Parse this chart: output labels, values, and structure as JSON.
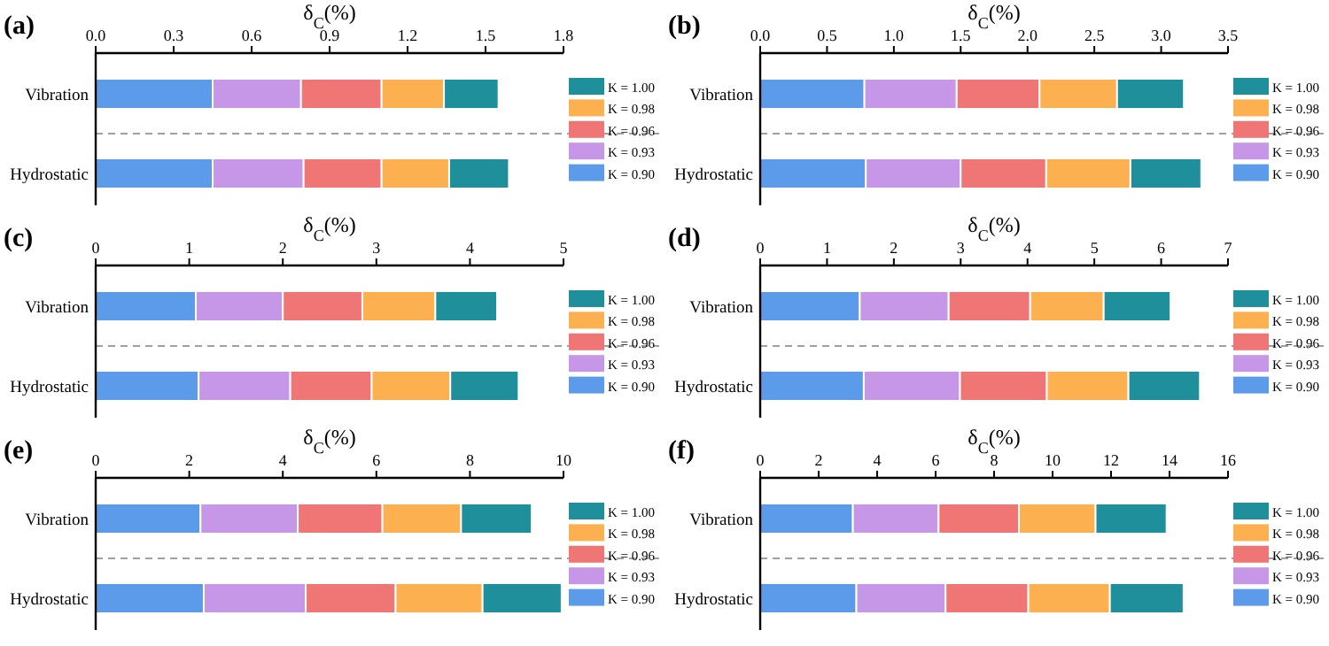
{
  "chart_data": [
    {
      "type": "bar",
      "orientation": "horizontal",
      "stacked": true,
      "title": "(a)",
      "xlabel": "δ$_{C}$(%)",
      "categories": [
        "Vibration",
        "Hydrostatic"
      ],
      "xlim": [
        0,
        1.8
      ],
      "xticks": [
        {
          "value": 0,
          "label": "0.0"
        },
        0.3,
        0.6,
        0.9,
        1.2,
        1.5,
        1.8
      ],
      "legend": "right",
      "series": [
        {
          "name": "K = 0.90",
          "color": "#5b9bea",
          "values": [
            0.45,
            0.45
          ]
        },
        {
          "name": "K = 0.93",
          "color": "#c597e6",
          "values": [
            0.34,
            0.35
          ]
        },
        {
          "name": "K = 0.96",
          "color": "#f07575",
          "values": [
            0.31,
            0.3
          ]
        },
        {
          "name": "K = 0.98",
          "color": "#fdb04f",
          "values": [
            0.24,
            0.26
          ]
        },
        {
          "name": "K = 1.00",
          "color": "#1f8f9c",
          "values": [
            0.21,
            0.23
          ]
        }
      ]
    },
    {
      "type": "bar",
      "orientation": "horizontal",
      "stacked": true,
      "title": "(b)",
      "xlabel": "δ$_{C}$(%)",
      "categories": [
        "Vibration",
        "Hydrostatic"
      ],
      "xlim": [
        0,
        3.5
      ],
      "xticks": [
        {
          "value": 0,
          "label": "0.0"
        },
        0.5,
        {
          "value": 1,
          "label": "1.0"
        },
        1.5,
        {
          "value": 2,
          "label": "2.0"
        },
        2.5,
        {
          "value": 3,
          "label": "3.0"
        },
        3.5
      ],
      "legend": "right",
      "series": [
        {
          "name": "K = 0.90",
          "color": "#5b9bea",
          "values": [
            0.78,
            0.79
          ]
        },
        {
          "name": "K = 0.93",
          "color": "#c597e6",
          "values": [
            0.69,
            0.71
          ]
        },
        {
          "name": "K = 0.96",
          "color": "#f07575",
          "values": [
            0.62,
            0.64
          ]
        },
        {
          "name": "K = 0.98",
          "color": "#fdb04f",
          "values": [
            0.58,
            0.63
          ]
        },
        {
          "name": "K = 1.00",
          "color": "#1f8f9c",
          "values": [
            0.5,
            0.53
          ]
        }
      ]
    },
    {
      "type": "bar",
      "orientation": "horizontal",
      "stacked": true,
      "title": "(c)",
      "xlabel": "δ$_{C}$(%)",
      "categories": [
        "Vibration",
        "Hydrostatic"
      ],
      "xlim": [
        0,
        5
      ],
      "xticks": [
        0,
        1,
        2,
        3,
        4,
        5
      ],
      "legend": "right",
      "series": [
        {
          "name": "K = 0.90",
          "color": "#5b9bea",
          "values": [
            1.07,
            1.1
          ]
        },
        {
          "name": "K = 0.93",
          "color": "#c597e6",
          "values": [
            0.93,
            0.98
          ]
        },
        {
          "name": "K = 0.96",
          "color": "#f07575",
          "values": [
            0.85,
            0.87
          ]
        },
        {
          "name": "K = 0.98",
          "color": "#fdb04f",
          "values": [
            0.78,
            0.84
          ]
        },
        {
          "name": "K = 1.00",
          "color": "#1f8f9c",
          "values": [
            0.66,
            0.73
          ]
        }
      ]
    },
    {
      "type": "bar",
      "orientation": "horizontal",
      "stacked": true,
      "title": "(d)",
      "xlabel": "δ$_{C}$(%)",
      "categories": [
        "Vibration",
        "Hydrostatic"
      ],
      "xlim": [
        0,
        7
      ],
      "xticks": [
        0,
        1,
        2,
        3,
        4,
        5,
        6,
        7
      ],
      "legend": "right",
      "series": [
        {
          "name": "K = 0.90",
          "color": "#5b9bea",
          "values": [
            1.49,
            1.55
          ]
        },
        {
          "name": "K = 0.93",
          "color": "#c597e6",
          "values": [
            1.33,
            1.44
          ]
        },
        {
          "name": "K = 0.96",
          "color": "#f07575",
          "values": [
            1.22,
            1.3
          ]
        },
        {
          "name": "K = 0.98",
          "color": "#fdb04f",
          "values": [
            1.1,
            1.22
          ]
        },
        {
          "name": "K = 1.00",
          "color": "#1f8f9c",
          "values": [
            1.0,
            1.07
          ]
        }
      ]
    },
    {
      "type": "bar",
      "orientation": "horizontal",
      "stacked": true,
      "title": "(e)",
      "xlabel": "δ$_{C}$(%)",
      "categories": [
        "Vibration",
        "Hydrostatic"
      ],
      "xlim": [
        0,
        10
      ],
      "xticks": [
        0,
        2,
        4,
        6,
        8,
        10
      ],
      "legend": "right",
      "series": [
        {
          "name": "K = 0.90",
          "color": "#5b9bea",
          "values": [
            2.24,
            2.31
          ]
        },
        {
          "name": "K = 0.93",
          "color": "#c597e6",
          "values": [
            2.08,
            2.18
          ]
        },
        {
          "name": "K = 0.96",
          "color": "#f07575",
          "values": [
            1.81,
            1.92
          ]
        },
        {
          "name": "K = 0.98",
          "color": "#fdb04f",
          "values": [
            1.68,
            1.86
          ]
        },
        {
          "name": "K = 1.00",
          "color": "#1f8f9c",
          "values": [
            1.51,
            1.69
          ]
        }
      ]
    },
    {
      "type": "bar",
      "orientation": "horizontal",
      "stacked": true,
      "title": "(f)",
      "xlabel": "δ$_{C}$(%)",
      "categories": [
        "Vibration",
        "Hydrostatic"
      ],
      "xlim": [
        0,
        16
      ],
      "xticks": [
        0,
        2,
        4,
        6,
        8,
        10,
        12,
        14,
        16
      ],
      "legend": "right",
      "series": [
        {
          "name": "K = 0.90",
          "color": "#5b9bea",
          "values": [
            3.17,
            3.29
          ]
        },
        {
          "name": "K = 0.93",
          "color": "#c597e6",
          "values": [
            2.93,
            3.05
          ]
        },
        {
          "name": "K = 0.96",
          "color": "#f07575",
          "values": [
            2.75,
            2.83
          ]
        },
        {
          "name": "K = 0.98",
          "color": "#fdb04f",
          "values": [
            2.62,
            2.79
          ]
        },
        {
          "name": "K = 1.00",
          "color": "#1f8f9c",
          "values": [
            2.43,
            2.52
          ]
        }
      ]
    }
  ]
}
